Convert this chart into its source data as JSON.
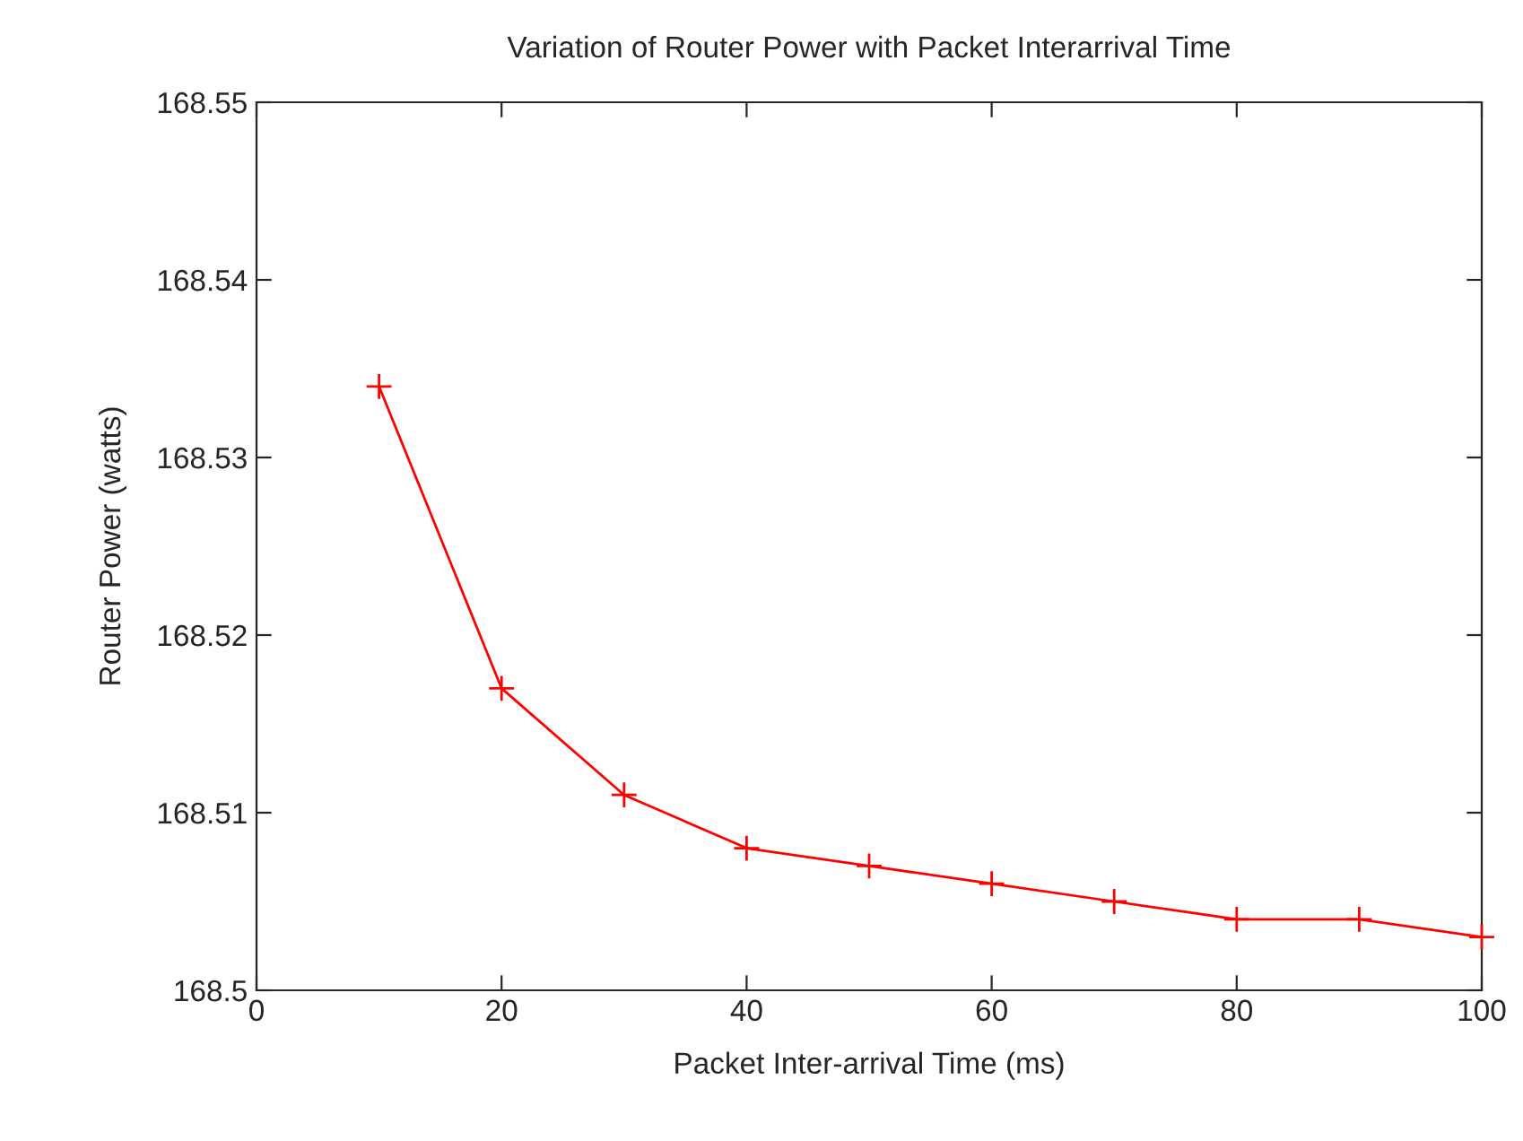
{
  "chart_data": {
    "type": "line",
    "title": "Variation of Router Power with Packet Interarrival Time",
    "xlabel": "Packet Inter-arrival Time (ms)",
    "ylabel": "Router Power (watts)",
    "x": [
      10,
      20,
      30,
      40,
      50,
      60,
      70,
      80,
      90,
      100
    ],
    "series": [
      {
        "color": "#ff0000",
        "values": [
          168.534,
          168.517,
          168.511,
          168.508,
          168.507,
          168.506,
          168.505,
          168.504,
          168.504,
          168.503
        ]
      }
    ],
    "xlim": [
      0,
      100
    ],
    "xticks": [
      0,
      20,
      40,
      60,
      80,
      100
    ],
    "ylim": [
      168.5,
      168.55
    ],
    "yticks": [
      168.5,
      168.51,
      168.52,
      168.53,
      168.54,
      168.55
    ],
    "grid": false,
    "legend": false,
    "marker": "cross",
    "line_style": "solid"
  }
}
